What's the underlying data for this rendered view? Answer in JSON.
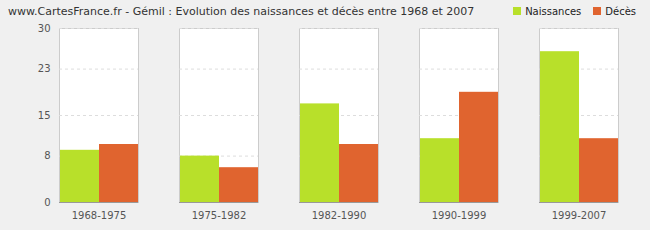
{
  "chart_data": {
    "type": "bar",
    "title": "www.CartesFrance.fr - Gémil : Evolution des naissances et décès entre 1968 et 2007",
    "categories": [
      "1968-1975",
      "1975-1982",
      "1982-1990",
      "1990-1999",
      "1999-2007"
    ],
    "series": [
      {
        "name": "Naissances",
        "color": "#b8e02a",
        "values": [
          9,
          8,
          17,
          11,
          26
        ]
      },
      {
        "name": "Décès",
        "color": "#e0642f",
        "values": [
          10,
          6,
          10,
          19,
          11
        ]
      }
    ],
    "ylim": [
      0,
      30
    ],
    "yticks": [
      0,
      8,
      15,
      23,
      30
    ],
    "grid": true,
    "legend": "top-right"
  }
}
